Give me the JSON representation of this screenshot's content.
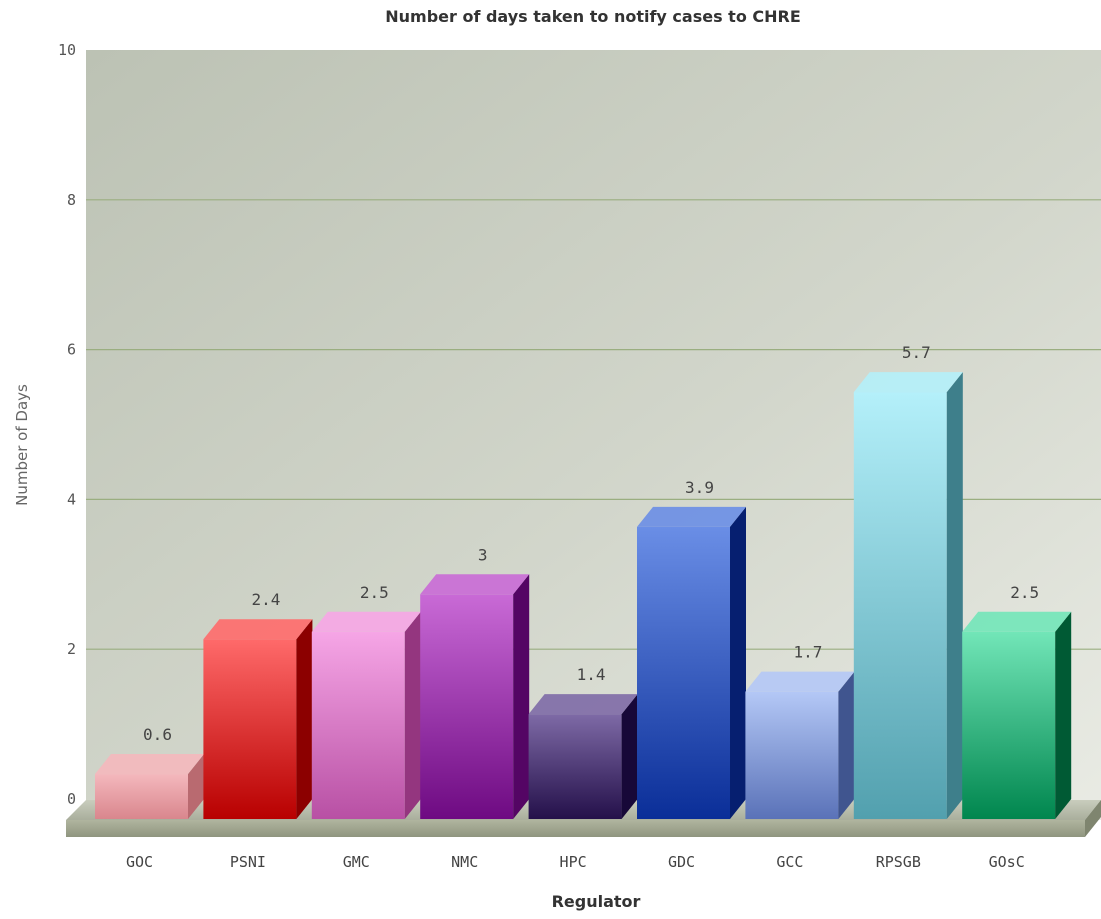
{
  "chart_data": {
    "type": "bar",
    "title": "Number of days taken to notify cases to CHRE",
    "xlabel": "Regulator",
    "ylabel": "Number of Days",
    "ylim": [
      0,
      10
    ],
    "yticks": [
      0,
      2,
      4,
      6,
      8,
      10
    ],
    "grid": true,
    "categories": [
      "GOC",
      "PSNI",
      "GMC",
      "NMC",
      "HPC",
      "GDC",
      "GCC",
      "RPSGB",
      "GOsC"
    ],
    "values": [
      0.6,
      2.4,
      2.5,
      3,
      1.4,
      3.9,
      1.7,
      5.7,
      2.5
    ],
    "value_labels": [
      "0.6",
      "2.4",
      "2.5",
      "3",
      "1.4",
      "3.9",
      "1.7",
      "5.7",
      "2.5"
    ],
    "colors": [
      {
        "light": "#f4b8bd",
        "dark": "#d9868d",
        "side": "#b96a70"
      },
      {
        "light": "#ff6a6a",
        "dark": "#b80000",
        "side": "#8c0000"
      },
      {
        "light": "#f6a6e6",
        "dark": "#b850a4",
        "side": "#94367f"
      },
      {
        "light": "#c96ad6",
        "dark": "#6e0a82",
        "side": "#540564"
      },
      {
        "light": "#7e6aa6",
        "dark": "#24104a",
        "side": "#170838"
      },
      {
        "light": "#6a8ee6",
        "dark": "#0a2e98",
        "side": "#061f70"
      },
      {
        "light": "#b4c8f6",
        "dark": "#5a72b8",
        "side": "#40558f"
      },
      {
        "light": "#b4f0fa",
        "dark": "#52a0ae",
        "side": "#3e7f8b"
      },
      {
        "light": "#72e6b8",
        "dark": "#00864e",
        "side": "#005a34"
      }
    ]
  }
}
